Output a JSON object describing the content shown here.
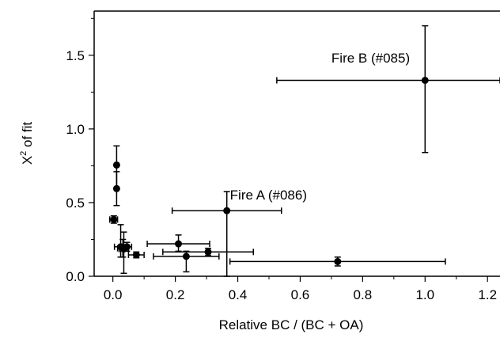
{
  "chart_data": {
    "type": "scatter",
    "title": "",
    "xlabel": "Relative BC / (BC + OA)",
    "ylabel_main": "X",
    "ylabel_sup": "2",
    "ylabel_rest": " of fit",
    "xlim": [
      -0.06,
      1.24
    ],
    "ylim": [
      0.0,
      1.8
    ],
    "x_ticks": [
      0.0,
      0.2,
      0.4,
      0.6,
      0.8,
      1.0,
      1.2
    ],
    "x_tick_labels": [
      "0.0",
      "0.2",
      "0.4",
      "0.6",
      "0.8",
      "1.0",
      "1.2"
    ],
    "y_ticks": [
      0.0,
      0.5,
      1.0,
      1.5
    ],
    "y_tick_labels": [
      "0.0",
      "0.5",
      "1.0",
      "1.5"
    ],
    "grid": false,
    "points": [
      {
        "x": 0.003,
        "y": 0.385,
        "xlo": -0.01,
        "xhi": 0.015,
        "ylo": 0.36,
        "yhi": 0.41
      },
      {
        "x": 0.012,
        "y": 0.755,
        "xlo": 0.012,
        "xhi": 0.012,
        "ylo": 0.6,
        "yhi": 0.885
      },
      {
        "x": 0.012,
        "y": 0.595,
        "xlo": 0.012,
        "xhi": 0.012,
        "ylo": 0.48,
        "yhi": 0.71
      },
      {
        "x": 0.025,
        "y": 0.2,
        "xlo": 0.005,
        "xhi": 0.045,
        "ylo": 0.13,
        "yhi": 0.35
      },
      {
        "x": 0.032,
        "y": 0.19,
        "xlo": 0.015,
        "xhi": 0.05,
        "ylo": 0.13,
        "yhi": 0.25
      },
      {
        "x": 0.035,
        "y": 0.185,
        "xlo": 0.02,
        "xhi": 0.05,
        "ylo": 0.02,
        "yhi": 0.3
      },
      {
        "x": 0.045,
        "y": 0.2,
        "xlo": 0.025,
        "xhi": 0.06,
        "ylo": 0.17,
        "yhi": 0.23
      },
      {
        "x": 0.075,
        "y": 0.145,
        "xlo": 0.05,
        "xhi": 0.1,
        "ylo": 0.125,
        "yhi": 0.165
      },
      {
        "x": 0.21,
        "y": 0.22,
        "xlo": 0.11,
        "xhi": 0.31,
        "ylo": 0.17,
        "yhi": 0.28
      },
      {
        "x": 0.235,
        "y": 0.135,
        "xlo": 0.13,
        "xhi": 0.34,
        "ylo": 0.03,
        "yhi": 0.17
      },
      {
        "x": 0.305,
        "y": 0.165,
        "xlo": 0.16,
        "xhi": 0.45,
        "ylo": 0.14,
        "yhi": 0.19
      },
      {
        "x": 0.365,
        "y": 0.445,
        "xlo": 0.19,
        "xhi": 0.54,
        "ylo": 0.0,
        "yhi": 0.575
      },
      {
        "x": 0.72,
        "y": 0.1,
        "xlo": 0.375,
        "xhi": 1.065,
        "ylo": 0.07,
        "yhi": 0.13
      },
      {
        "x": 1.0,
        "y": 1.33,
        "xlo": 0.525,
        "xhi": 1.24,
        "ylo": 0.84,
        "yhi": 1.7
      }
    ],
    "annotations": [
      {
        "text": "Fire A (#086)",
        "x": 0.375,
        "y": 0.52
      },
      {
        "text": "Fire B (#085)",
        "x": 0.7,
        "y": 1.45
      }
    ]
  }
}
